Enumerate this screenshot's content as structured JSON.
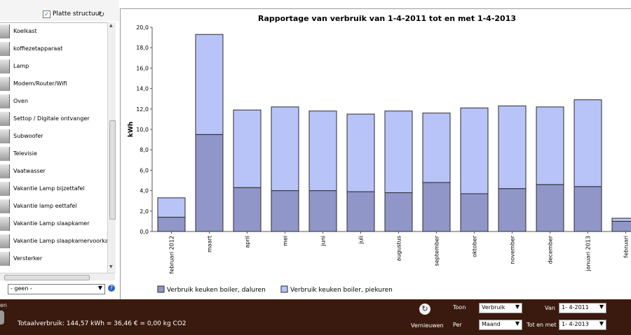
{
  "left_panel": {
    "flat_structure_label": "Platte structuur",
    "flat_structure_checked": "✓",
    "devices": [
      "Koelkast",
      "koffiezetapparaat",
      "Lamp",
      "Modem/Router/Wifi",
      "Oven",
      "Settop / Digitale ontvanger",
      "Subwoofer",
      "Televisie",
      "Vaatwasser",
      "Vakantie Lamp bijzettafel",
      "Vakantie lamp eettafel",
      "Vakantie Lamp slaapkamer",
      "Vakantie Lamp slaapkamervoorkant",
      "Versterker"
    ],
    "selector_value": "- geen -"
  },
  "chart_data": {
    "type": "bar",
    "stacked": true,
    "title": "Rapportage van verbruik van 1-4-2011 tot en met 1-4-2013",
    "ylabel": "kWh",
    "xlabel": "",
    "ylim": [
      0,
      20
    ],
    "yticks": [
      "0,0",
      "2,0",
      "4,0",
      "6,0",
      "8,0",
      "10,0",
      "12,0",
      "14,0",
      "16,0",
      "18,0",
      "20,0"
    ],
    "categories": [
      "februari 2012",
      "maart",
      "april",
      "mei",
      "juni",
      "juli",
      "augustus",
      "september",
      "oktober",
      "november",
      "december",
      "januari 2013",
      "februari"
    ],
    "series": [
      {
        "name": "Verbruik keuken boiler, dalurens",
        "label": "Verbruik keuken boiler, daluren",
        "color": "#9096c8",
        "values": [
          1.4,
          9.5,
          4.3,
          4.0,
          4.0,
          3.9,
          3.8,
          4.8,
          3.7,
          4.2,
          4.6,
          4.4,
          1.0
        ]
      },
      {
        "name": "Verbruik keuken boiler, piekuren",
        "label": "Verbruik keuken boiler, piekuren",
        "color": "#b8c3f8",
        "values": [
          1.9,
          9.8,
          7.6,
          8.2,
          7.8,
          7.6,
          8.0,
          6.8,
          8.4,
          8.1,
          7.6,
          8.5,
          0.3
        ]
      }
    ],
    "grid": false,
    "legend": "bottom-left"
  },
  "bottom_bar": {
    "cut_label": "en",
    "total_text": "Totaalverbruik: 144,57 kWh = 36,46 € = 0,00 kg CO2",
    "refresh_label": "Vernieuwen",
    "show_label": "Toon",
    "show_value": "Verbruik",
    "per_label": "Per",
    "per_value": "Maand",
    "from_label": "Van",
    "from_value": "1- 4-2011",
    "until_label": "Tot en met",
    "until_value": "1- 4-2013"
  },
  "colors": {
    "series1": "#9096c8",
    "series2": "#b8c3f8",
    "bar_border": "#2b2b2b",
    "bottom_bar": "#3a1a0e"
  }
}
